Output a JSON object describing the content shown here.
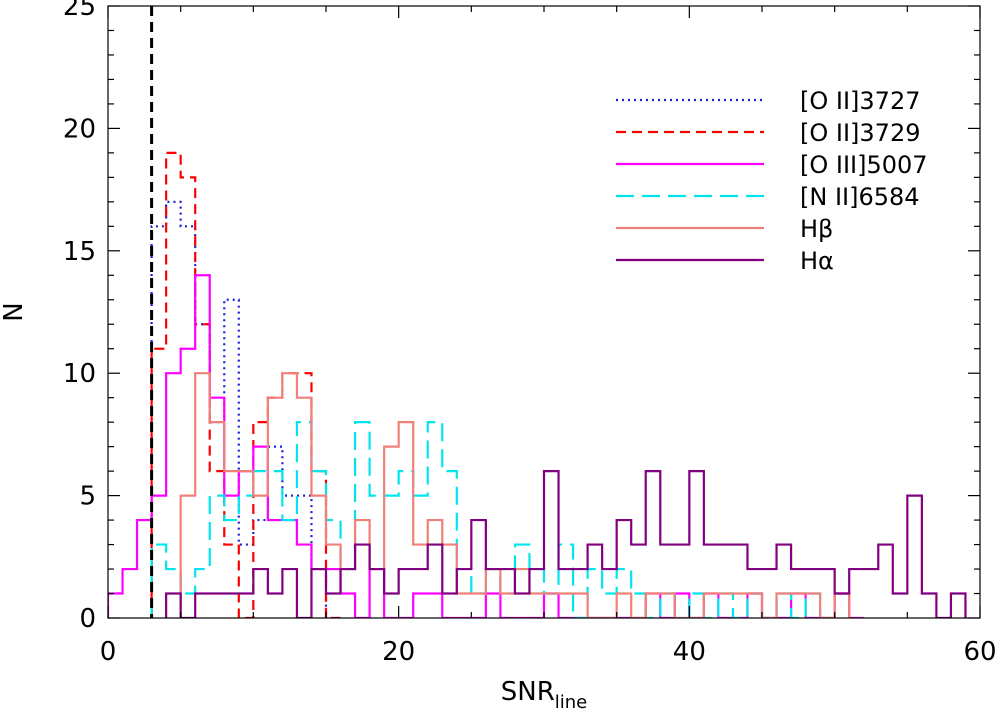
{
  "chart_data": {
    "type": "histogram",
    "xlabel": "SNR",
    "xlabel_sub": "line",
    "ylabel": "N",
    "xlim": [
      0,
      60
    ],
    "ylim": [
      0,
      25
    ],
    "xticks": [
      0,
      20,
      40,
      60
    ],
    "yticks": [
      0,
      5,
      10,
      15,
      20,
      25
    ],
    "bin_width": 1,
    "threshold_line": {
      "x": 3,
      "color": "#000000",
      "style": "dashed"
    },
    "legend_position": "top-right",
    "series": [
      {
        "name": "[O II]3727",
        "color": "#1f1fd8",
        "style": "dotted",
        "bins": [
          [
            3,
            4,
            16
          ],
          [
            4,
            5,
            17
          ],
          [
            5,
            6,
            16
          ],
          [
            6,
            7,
            12
          ],
          [
            7,
            8,
            8
          ],
          [
            8,
            9,
            13
          ],
          [
            9,
            10,
            3
          ],
          [
            10,
            11,
            4
          ],
          [
            11,
            12,
            7
          ],
          [
            12,
            13,
            5
          ],
          [
            13,
            14,
            5
          ],
          [
            14,
            15,
            2
          ],
          [
            15,
            16,
            0
          ]
        ]
      },
      {
        "name": "[O II]3729",
        "color": "#ff0000",
        "style": "dashed",
        "bins": [
          [
            3,
            4,
            11
          ],
          [
            4,
            5,
            19
          ],
          [
            5,
            6,
            18
          ],
          [
            6,
            7,
            12
          ],
          [
            7,
            8,
            6
          ],
          [
            8,
            9,
            3
          ],
          [
            9,
            10,
            0
          ],
          [
            10,
            11,
            8
          ],
          [
            11,
            12,
            9
          ],
          [
            12,
            13,
            10
          ],
          [
            13,
            14,
            10
          ],
          [
            14,
            15,
            6
          ],
          [
            15,
            16,
            0
          ]
        ]
      },
      {
        "name": "[O III]5007",
        "color": "#ff00ff",
        "style": "solid",
        "bins": [
          [
            0,
            1,
            1
          ],
          [
            1,
            2,
            2
          ],
          [
            2,
            3,
            4
          ],
          [
            3,
            4,
            5
          ],
          [
            4,
            5,
            10
          ],
          [
            5,
            6,
            11
          ],
          [
            6,
            7,
            14
          ],
          [
            7,
            8,
            9
          ],
          [
            8,
            9,
            5
          ],
          [
            9,
            10,
            6
          ],
          [
            10,
            11,
            7
          ],
          [
            11,
            12,
            4
          ],
          [
            12,
            13,
            4
          ],
          [
            13,
            14,
            3
          ],
          [
            14,
            15,
            2
          ],
          [
            15,
            16,
            2
          ],
          [
            16,
            17,
            1
          ],
          [
            17,
            18,
            0
          ],
          [
            18,
            19,
            2
          ],
          [
            19,
            20,
            0
          ],
          [
            20,
            21,
            0
          ],
          [
            21,
            22,
            1
          ],
          [
            22,
            23,
            1
          ],
          [
            23,
            24,
            0
          ],
          [
            24,
            25,
            0
          ],
          [
            25,
            26,
            0
          ],
          [
            26,
            27,
            1
          ],
          [
            27,
            28,
            0
          ],
          [
            28,
            29,
            0
          ],
          [
            29,
            30,
            0
          ],
          [
            30,
            31,
            1
          ],
          [
            31,
            32,
            0
          ],
          [
            32,
            33,
            0
          ],
          [
            33,
            34,
            0
          ],
          [
            34,
            35,
            0
          ],
          [
            35,
            36,
            0
          ],
          [
            36,
            37,
            0
          ],
          [
            37,
            38,
            1
          ],
          [
            38,
            39,
            0
          ],
          [
            39,
            40,
            1
          ],
          [
            40,
            41,
            0
          ],
          [
            41,
            42,
            1
          ],
          [
            42,
            43,
            0
          ],
          [
            43,
            44,
            0
          ],
          [
            44,
            45,
            1
          ],
          [
            45,
            46,
            0
          ],
          [
            46,
            47,
            0
          ],
          [
            47,
            48,
            1
          ],
          [
            48,
            49,
            0
          ],
          [
            49,
            50,
            0
          ],
          [
            50,
            51,
            1
          ],
          [
            51,
            52,
            0
          ]
        ]
      },
      {
        "name": "[N II]6584",
        "color": "#00e5ee",
        "style": "longdash",
        "bins": [
          [
            3,
            4,
            3
          ],
          [
            4,
            5,
            2
          ],
          [
            5,
            6,
            1
          ],
          [
            6,
            7,
            2
          ],
          [
            7,
            8,
            5
          ],
          [
            8,
            9,
            4
          ],
          [
            9,
            10,
            5
          ],
          [
            10,
            11,
            6
          ],
          [
            11,
            12,
            6
          ],
          [
            12,
            13,
            4
          ],
          [
            13,
            14,
            8
          ],
          [
            14,
            15,
            6
          ],
          [
            15,
            16,
            4
          ],
          [
            16,
            17,
            2
          ],
          [
            17,
            18,
            8
          ],
          [
            18,
            19,
            5
          ],
          [
            19,
            20,
            5
          ],
          [
            20,
            21,
            6
          ],
          [
            21,
            22,
            5
          ],
          [
            22,
            23,
            8
          ],
          [
            23,
            24,
            6
          ],
          [
            24,
            25,
            2
          ],
          [
            25,
            26,
            1
          ],
          [
            26,
            27,
            2
          ],
          [
            27,
            28,
            1
          ],
          [
            28,
            29,
            3
          ],
          [
            29,
            30,
            2
          ],
          [
            30,
            31,
            1
          ],
          [
            31,
            32,
            3
          ],
          [
            32,
            33,
            0
          ],
          [
            33,
            34,
            2
          ],
          [
            34,
            35,
            1
          ],
          [
            35,
            36,
            2
          ],
          [
            36,
            37,
            1
          ],
          [
            37,
            38,
            0
          ],
          [
            38,
            39,
            1
          ],
          [
            39,
            40,
            0
          ],
          [
            40,
            41,
            1
          ],
          [
            41,
            42,
            0
          ],
          [
            42,
            43,
            1
          ],
          [
            43,
            44,
            0
          ],
          [
            44,
            45,
            1
          ],
          [
            45,
            46,
            0
          ],
          [
            46,
            47,
            1
          ],
          [
            47,
            48,
            0
          ],
          [
            48,
            49,
            1
          ],
          [
            49,
            50,
            0
          ]
        ]
      },
      {
        "name": "Hβ",
        "color": "#f08078",
        "style": "solid",
        "bins": [
          [
            5,
            6,
            5
          ],
          [
            6,
            7,
            10
          ],
          [
            7,
            8,
            8
          ],
          [
            8,
            9,
            6
          ],
          [
            9,
            10,
            6
          ],
          [
            10,
            11,
            5
          ],
          [
            11,
            12,
            9
          ],
          [
            12,
            13,
            10
          ],
          [
            13,
            14,
            9
          ],
          [
            14,
            15,
            5
          ],
          [
            15,
            16,
            3
          ],
          [
            16,
            17,
            2
          ],
          [
            17,
            18,
            4
          ],
          [
            18,
            19,
            2
          ],
          [
            19,
            20,
            7
          ],
          [
            20,
            21,
            8
          ],
          [
            21,
            22,
            3
          ],
          [
            22,
            23,
            4
          ],
          [
            23,
            24,
            3
          ],
          [
            24,
            25,
            1
          ],
          [
            25,
            26,
            1
          ],
          [
            26,
            27,
            2
          ],
          [
            27,
            28,
            1
          ],
          [
            28,
            29,
            2
          ],
          [
            29,
            30,
            1
          ],
          [
            30,
            31,
            1
          ],
          [
            31,
            32,
            1
          ],
          [
            32,
            33,
            1
          ],
          [
            33,
            34,
            0
          ],
          [
            34,
            35,
            0
          ],
          [
            35,
            36,
            1
          ],
          [
            36,
            37,
            0
          ],
          [
            37,
            38,
            1
          ],
          [
            38,
            39,
            1
          ],
          [
            39,
            40,
            0
          ],
          [
            40,
            41,
            0
          ],
          [
            41,
            42,
            1
          ],
          [
            42,
            43,
            1
          ],
          [
            43,
            44,
            1
          ],
          [
            44,
            45,
            1
          ],
          [
            45,
            46,
            0
          ],
          [
            46,
            47,
            1
          ],
          [
            47,
            48,
            1
          ],
          [
            48,
            49,
            1
          ],
          [
            49,
            50,
            0
          ],
          [
            50,
            51,
            1
          ]
        ]
      },
      {
        "name": "Hα",
        "color": "#800080",
        "style": "solid",
        "bins": [
          [
            4,
            5,
            1
          ],
          [
            5,
            6,
            0
          ],
          [
            6,
            7,
            1
          ],
          [
            7,
            8,
            1
          ],
          [
            8,
            9,
            1
          ],
          [
            9,
            10,
            1
          ],
          [
            10,
            11,
            2
          ],
          [
            11,
            12,
            1
          ],
          [
            12,
            13,
            2
          ],
          [
            13,
            14,
            0
          ],
          [
            14,
            15,
            2
          ],
          [
            15,
            16,
            1
          ],
          [
            16,
            17,
            2
          ],
          [
            17,
            18,
            3
          ],
          [
            18,
            19,
            2
          ],
          [
            19,
            20,
            1
          ],
          [
            20,
            21,
            2
          ],
          [
            21,
            22,
            2
          ],
          [
            22,
            23,
            3
          ],
          [
            23,
            24,
            1
          ],
          [
            24,
            25,
            2
          ],
          [
            25,
            26,
            4
          ],
          [
            26,
            27,
            2
          ],
          [
            27,
            28,
            2
          ],
          [
            28,
            29,
            1
          ],
          [
            29,
            30,
            2
          ],
          [
            30,
            31,
            6
          ],
          [
            31,
            32,
            2
          ],
          [
            32,
            33,
            2
          ],
          [
            33,
            34,
            3
          ],
          [
            34,
            35,
            2
          ],
          [
            35,
            36,
            4
          ],
          [
            36,
            37,
            3
          ],
          [
            37,
            38,
            6
          ],
          [
            38,
            39,
            3
          ],
          [
            39,
            40,
            3
          ],
          [
            40,
            41,
            6
          ],
          [
            41,
            42,
            3
          ],
          [
            42,
            43,
            3
          ],
          [
            43,
            44,
            3
          ],
          [
            44,
            45,
            2
          ],
          [
            45,
            46,
            2
          ],
          [
            46,
            47,
            3
          ],
          [
            47,
            48,
            2
          ],
          [
            48,
            49,
            2
          ],
          [
            49,
            50,
            2
          ],
          [
            50,
            51,
            1
          ],
          [
            51,
            52,
            2
          ],
          [
            52,
            53,
            2
          ],
          [
            53,
            54,
            3
          ],
          [
            54,
            55,
            1
          ],
          [
            55,
            56,
            5
          ],
          [
            56,
            57,
            1
          ],
          [
            57,
            58,
            0
          ],
          [
            58,
            59,
            1
          ]
        ]
      }
    ]
  }
}
